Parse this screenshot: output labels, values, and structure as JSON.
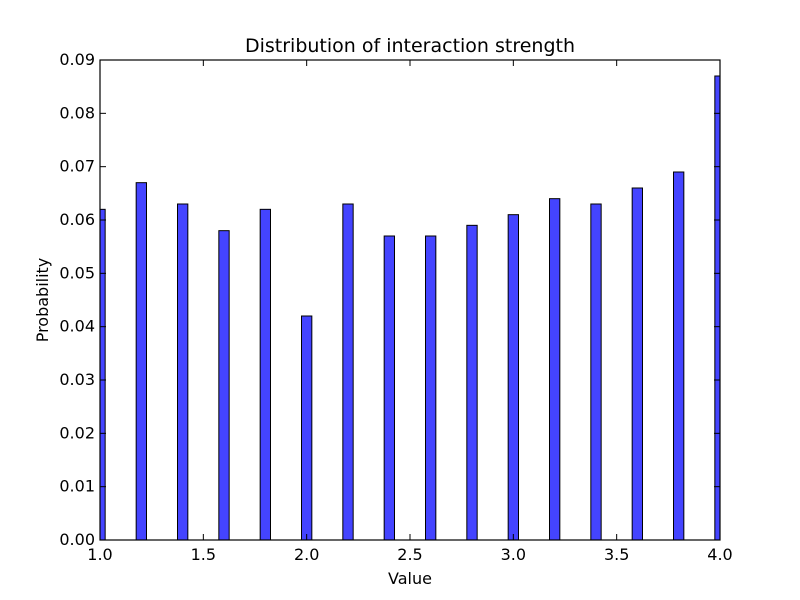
{
  "chart_data": {
    "type": "bar",
    "title": "Distribution of interaction strength",
    "xlabel": "Value",
    "ylabel": "Probability",
    "xlim": [
      1.0,
      4.0
    ],
    "ylim": [
      0.0,
      0.09
    ],
    "x_ticks": [
      "1.0",
      "1.5",
      "2.0",
      "2.5",
      "3.0",
      "3.5",
      "4.0"
    ],
    "y_ticks": [
      "0.00",
      "0.01",
      "0.02",
      "0.03",
      "0.04",
      "0.05",
      "0.06",
      "0.07",
      "0.08",
      "0.09"
    ],
    "grid": false,
    "bar_color": "#4444ff",
    "bar_width": 0.05,
    "x": [
      1.0,
      1.2,
      1.4,
      1.6,
      1.8,
      2.0,
      2.2,
      2.4,
      2.6,
      2.8,
      3.0,
      3.2,
      3.4,
      3.6,
      3.8,
      4.0
    ],
    "values": [
      0.062,
      0.067,
      0.063,
      0.058,
      0.062,
      0.042,
      0.063,
      0.057,
      0.057,
      0.059,
      0.061,
      0.064,
      0.063,
      0.066,
      0.069,
      0.087
    ]
  }
}
